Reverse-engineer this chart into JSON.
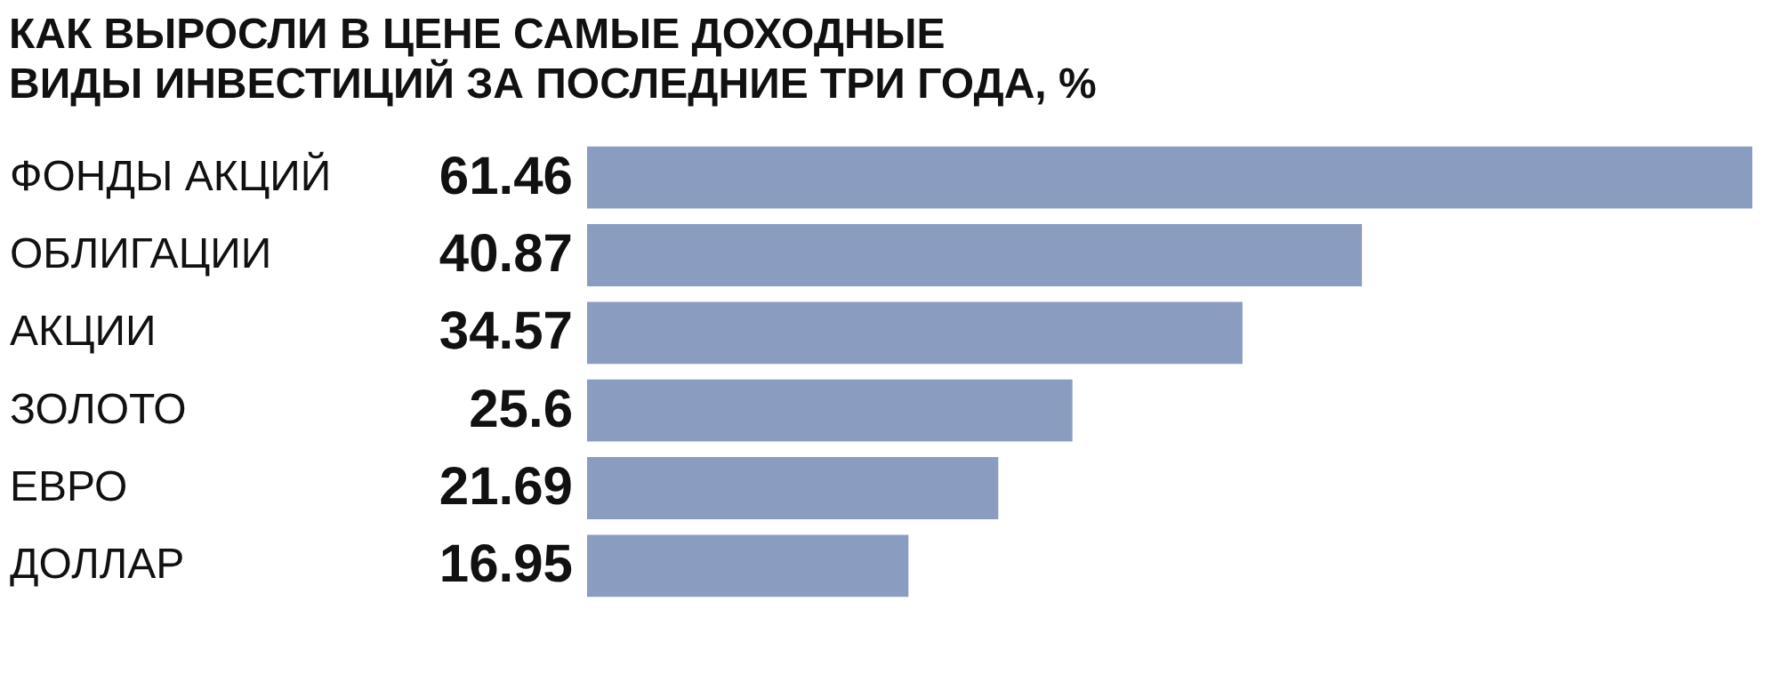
{
  "chart_data": {
    "type": "bar",
    "orientation": "horizontal",
    "data_labels": true,
    "title": "КАК ВЫРОСЛИ В ЦЕНЕ САМЫЕ ДОХОДНЫЕ\nВИДЫ ИНВЕСТИЦИЙ ЗА ПОСЛЕДНИЕ ТРИ ГОДА, %",
    "categories": [
      "ФОНДЫ АКЦИЙ",
      "ОБЛИГАЦИИ",
      "АКЦИИ",
      "ЗОЛОТО",
      "ЕВРО",
      "ДОЛЛАР"
    ],
    "values": [
      61.46,
      40.87,
      34.57,
      25.6,
      21.69,
      16.95
    ],
    "color": "#8a9dc0"
  }
}
